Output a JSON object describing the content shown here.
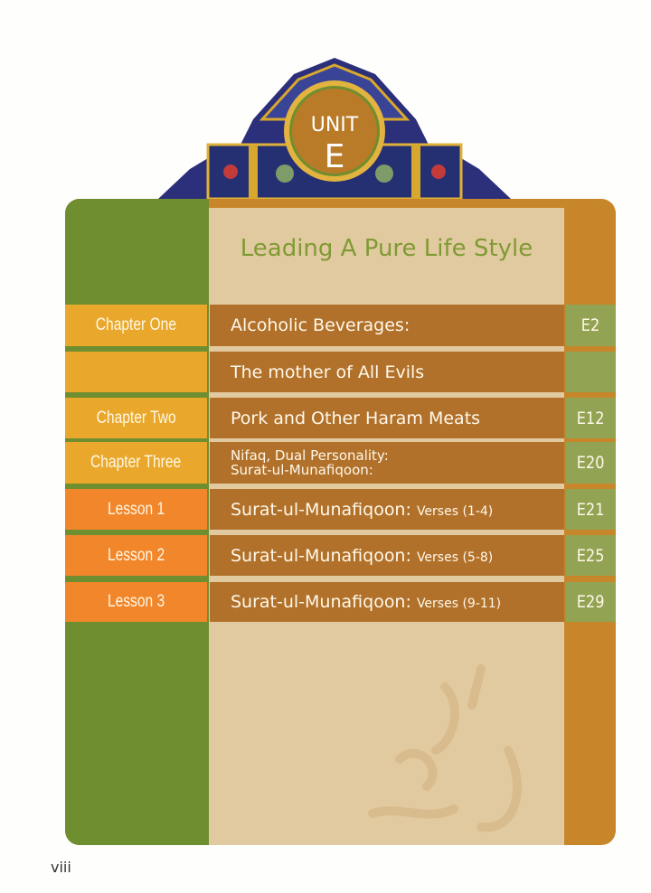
{
  "unit": {
    "label": "UNIT",
    "letter": "E"
  },
  "unit_title": "Leading A Pure Life Style",
  "toc": [
    {
      "label": "Chapter One",
      "title": "Alcoholic Beverages:",
      "page": "E2",
      "kind": "chapter"
    },
    {
      "label": "",
      "title": "The mother of All Evils",
      "page": "",
      "kind": "chapter"
    },
    {
      "label": "Chapter Two",
      "title": "Pork and Other Haram Meats",
      "page": "E12",
      "kind": "chapter"
    },
    {
      "label": "Chapter Three",
      "title_line1": "Nifaq, Dual Personality:",
      "title_line2": "Surat-ul-Munafiqoon:",
      "page": "E20",
      "kind": "chapter"
    },
    {
      "label": "Lesson 1",
      "title": "Surat-ul-Munafiqoon:",
      "verses": "Verses (1-4)",
      "page": "E21",
      "kind": "lesson"
    },
    {
      "label": "Lesson 2",
      "title": "Surat-ul-Munafiqoon:",
      "verses": "Verses (5-8)",
      "page": "E25",
      "kind": "lesson"
    },
    {
      "label": "Lesson 3",
      "title": "Surat-ul-Munafiqoon:",
      "verses": "Verses (9-11)",
      "page": "E29",
      "kind": "lesson"
    }
  ],
  "page_number": "viii",
  "colors": {
    "green": "#6f8e2f",
    "orange": "#c7862a",
    "beige": "#e2caa0",
    "brown": "#b1712a",
    "yellow": "#e9a82b",
    "lesson_orange": "#f1862a",
    "page_green": "#92a353"
  }
}
